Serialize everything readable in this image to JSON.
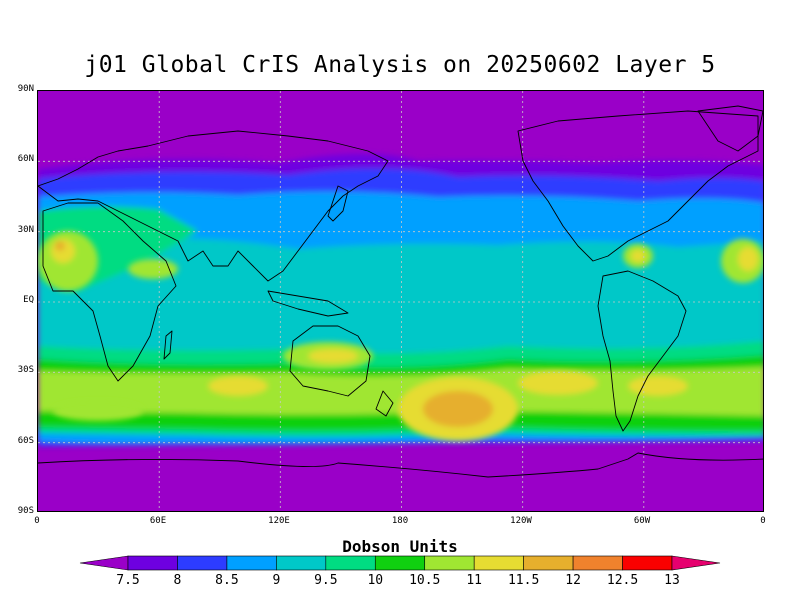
{
  "title": "j01 Global CrIS Analysis on 20250602 Layer 5",
  "lat_ticks": [
    "90N",
    "60N",
    "30N",
    "EQ",
    "30S",
    "60S",
    "90S"
  ],
  "lon_ticks": [
    "0",
    "60E",
    "120E",
    "180",
    "120W",
    "60W",
    "0"
  ],
  "colorbar": {
    "title": "Dobson Units",
    "labels": [
      "7.5",
      "8",
      "8.5",
      "9",
      "9.5",
      "10",
      "10.5",
      "11",
      "11.5",
      "12",
      "12.5",
      "13"
    ],
    "colors": [
      "#9a00c8",
      "#6e00e0",
      "#2d3cff",
      "#00a0ff",
      "#00c8c8",
      "#00dc82",
      "#10d010",
      "#a0e632",
      "#e6dc32",
      "#e6af2d",
      "#f0822d",
      "#fa0000",
      "#e6006e"
    ]
  },
  "palette": {
    "background": "#9a00c8",
    "grid": "#c8c8c8",
    "coast": "#000000"
  }
}
